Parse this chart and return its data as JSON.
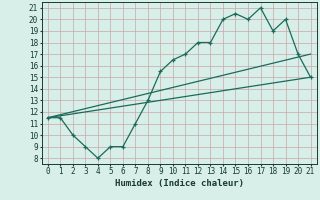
{
  "title": "",
  "xlabel": "Humidex (Indice chaleur)",
  "ylabel": "",
  "bg_color": "#d8eee8",
  "grid_color": "#c8a8a8",
  "line_color": "#1a6b5a",
  "xlim": [
    -0.5,
    21.5
  ],
  "ylim": [
    7.5,
    21.5
  ],
  "xticks": [
    0,
    1,
    2,
    3,
    4,
    5,
    6,
    7,
    8,
    9,
    10,
    11,
    12,
    13,
    14,
    15,
    16,
    17,
    18,
    19,
    20,
    21
  ],
  "yticks": [
    8,
    9,
    10,
    11,
    12,
    13,
    14,
    15,
    16,
    17,
    18,
    19,
    20,
    21
  ],
  "main_line": {
    "x": [
      0,
      1,
      2,
      3,
      4,
      5,
      6,
      7,
      8,
      9,
      10,
      11,
      12,
      13,
      14,
      15,
      16,
      17,
      18,
      19,
      20,
      21
    ],
    "y": [
      11.5,
      11.5,
      10.0,
      9.0,
      8.0,
      9.0,
      9.0,
      11.0,
      13.0,
      15.5,
      16.5,
      17.0,
      18.0,
      18.0,
      20.0,
      20.5,
      20.0,
      21.0,
      19.0,
      20.0,
      17.0,
      15.0
    ]
  },
  "line1": {
    "x": [
      0,
      21
    ],
    "y": [
      11.5,
      17.0
    ]
  },
  "line2": {
    "x": [
      0,
      21
    ],
    "y": [
      11.5,
      15.0
    ]
  }
}
